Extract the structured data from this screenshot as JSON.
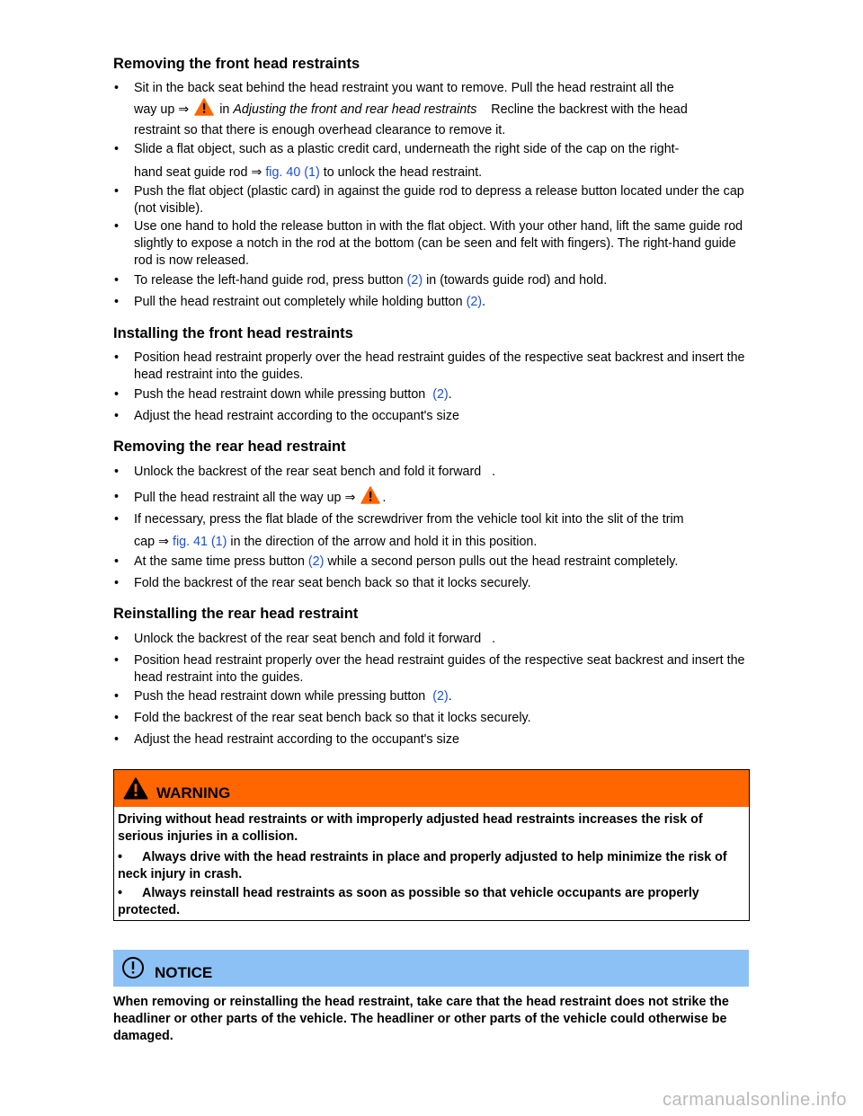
{
  "colors": {
    "link": "#1b4fd8",
    "warning": "#ff6600",
    "notice": "#8cc1f5"
  },
  "icons": {
    "warning": "warning-triangle-icon",
    "notice": "exclamation-circle-icon"
  },
  "s1": {
    "heading": "Removing the front head restraints",
    "b1": {
      "l1": "Sit in the back seat behind the head restraint you want to remove. Pull the head restraint all the",
      "l2a": "way up ⇒",
      "l2b": "in",
      "l2c": "Adjusting the front and rear head restraints",
      "l2d": "Recline the backrest with the head",
      "l3": "restraint so that there is enough overhead clearance to remove it."
    },
    "b2": {
      "l1": "Slide a flat object, such as a plastic credit card, underneath the right side of the cap on the right-",
      "l2a": "hand seat guide rod ⇒",
      "l2link": "fig. 40 (1)",
      "l2b": "to unlock the head restraint."
    },
    "b3": "Push the flat object (plastic card) in against the guide rod to depress a release button located under the cap (not visible).",
    "b4": "Use one hand to hold the release button in with the flat object. With your other hand, lift the same guide rod slightly to expose a notch in the rod at the bottom (can be seen and felt with fingers). The right-hand guide rod is now released.",
    "b5": {
      "a": "To release the left-hand guide rod, press button",
      "link": "(2)",
      "b": "in (towards guide rod) and hold."
    },
    "b6": {
      "a": "Pull the head restraint out completely while holding button",
      "link": "(2)",
      "b": "."
    }
  },
  "s2": {
    "heading": "Installing the front head restraints",
    "b1": "Position head restraint properly over the head restraint guides of the respective seat backrest and insert the head restraint into the guides.",
    "b2": {
      "a": "Push the head restraint down while pressing button",
      "link": "(2)",
      "b": "."
    },
    "b3": "Adjust the head restraint according to the occupant's size"
  },
  "s3": {
    "heading": "Removing the rear head restraint",
    "b1": "Unlock the backrest of the rear seat bench and fold it forward   .",
    "b2": {
      "a": "Pull the head restraint all the way up ⇒",
      "b": "."
    },
    "b3": {
      "l1": "If necessary, press the flat blade of the screwdriver from the vehicle tool kit into the slit of the trim",
      "l2a": "cap ⇒",
      "l2link": "fig. 41 (1)",
      "l2b": "in the direction of the arrow and hold it in this position."
    },
    "b4": {
      "a": "At the same time press button",
      "link": "(2)",
      "b": "while a second person pulls out the head restraint completely."
    },
    "b5": "Fold the backrest of the rear seat bench back so that it locks securely."
  },
  "s4": {
    "heading": "Reinstalling the rear head restraint",
    "b1": "Unlock the backrest of the rear seat bench and fold it forward   .",
    "b2": "Position head restraint properly over the head restraint guides of the respective seat backrest and insert the head restraint into the guides.",
    "b3": {
      "a": "Push the head restraint down while pressing button",
      "link": "(2)",
      "b": "."
    },
    "b4": "Fold the backrest of the rear seat bench back so that it locks securely.",
    "b5": "Adjust the head restraint according to the occupant's size"
  },
  "warning": {
    "title": "WARNING",
    "p1": "Driving without head restraints or with improperly adjusted head restraints increases the risk of serious injuries in a collision.",
    "b1": "Always drive with the head restraints in place and properly adjusted to help minimize the risk of neck injury in crash.",
    "b2": "Always reinstall head restraints as soon as possible so that vehicle occupants are properly protected."
  },
  "notice": {
    "title": "NOTICE",
    "p": "When removing or reinstalling the head restraint, take care that the head restraint does not strike the headliner or other parts of the vehicle. The headliner or other parts of the vehicle could otherwise be damaged."
  },
  "watermark": "carmanualsonline.info"
}
